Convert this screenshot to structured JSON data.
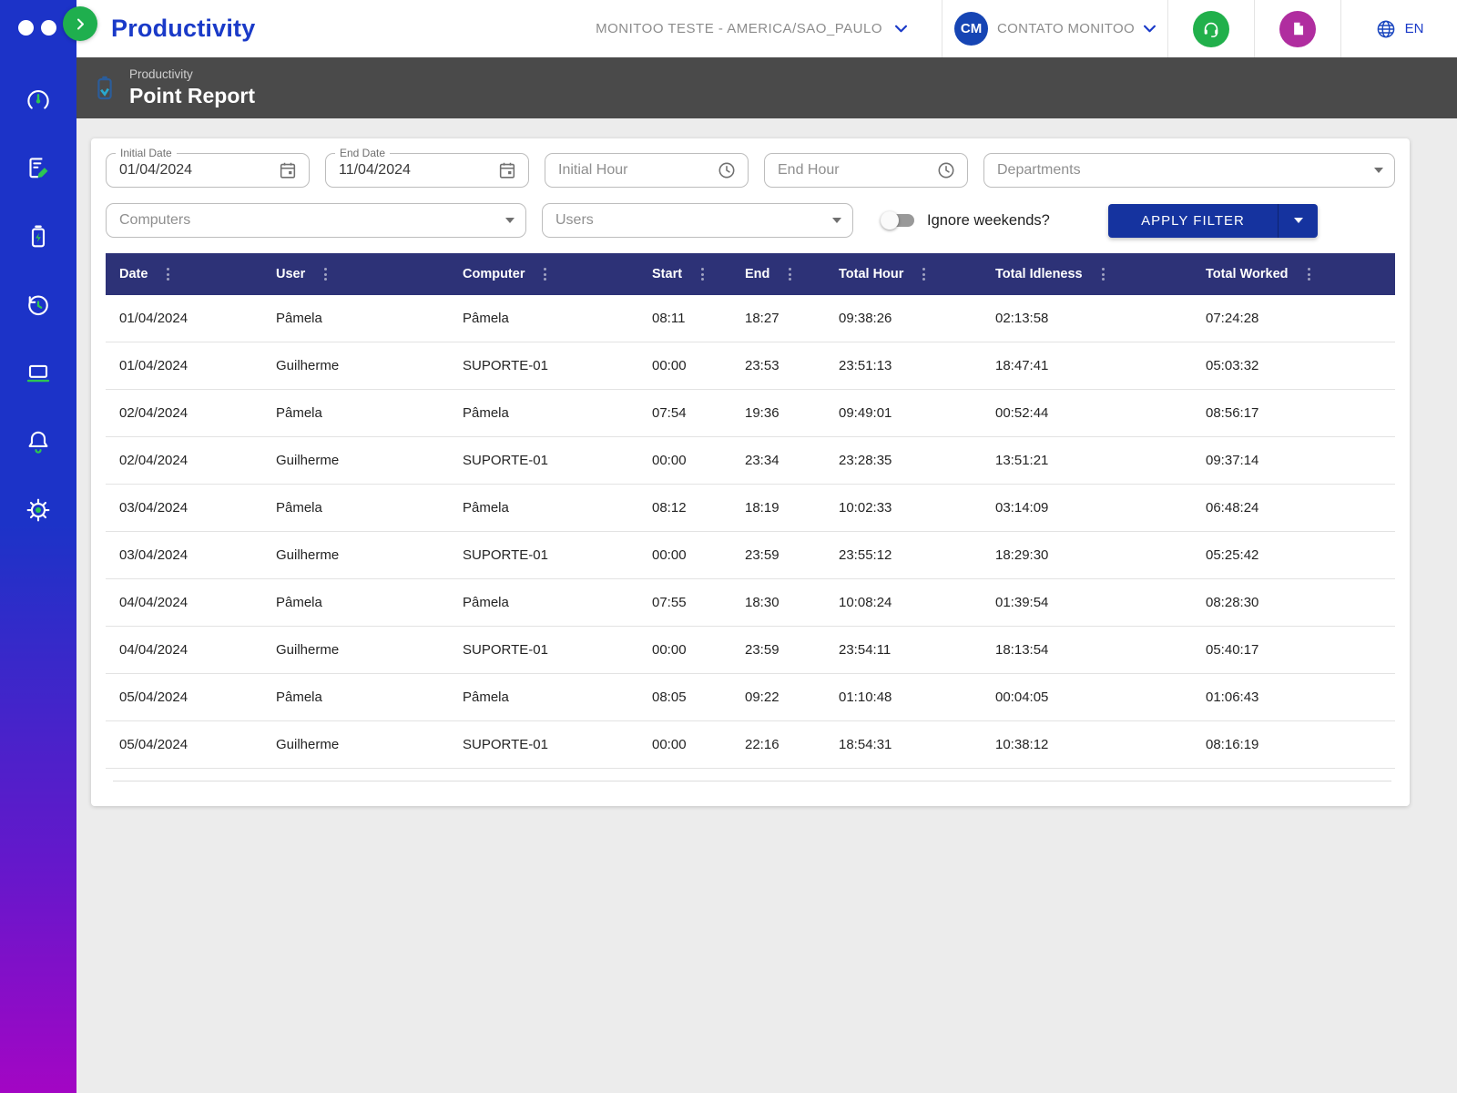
{
  "brand": {
    "app_name": "Productivity"
  },
  "topbar": {
    "tenant_label": "MONITOO TESTE - AMERICA/SAO_PAULO",
    "user_initials": "CM",
    "user_name": "CONTATO MONITOO",
    "language": "EN"
  },
  "page_header": {
    "breadcrumb": "Productivity",
    "title": "Point Report"
  },
  "filters": {
    "initial_date": {
      "label": "Initial Date",
      "value": "01/04/2024"
    },
    "end_date": {
      "label": "End Date",
      "value": "11/04/2024"
    },
    "initial_hour": {
      "placeholder": "Initial Hour"
    },
    "end_hour": {
      "placeholder": "End Hour"
    },
    "departments": {
      "placeholder": "Departments"
    },
    "computers": {
      "placeholder": "Computers"
    },
    "users": {
      "placeholder": "Users"
    },
    "ignore_weekends": {
      "label": "Ignore weekends?",
      "enabled": false
    },
    "apply_button_label": "APPLY FILTER"
  },
  "table": {
    "columns": [
      "Date",
      "User",
      "Computer",
      "Start",
      "End",
      "Total Hour",
      "Total Idleness",
      "Total Worked"
    ],
    "rows": [
      [
        "01/04/2024",
        "Pâmela",
        "Pâmela",
        "08:11",
        "18:27",
        "09:38:26",
        "02:13:58",
        "07:24:28"
      ],
      [
        "01/04/2024",
        "Guilherme",
        "SUPORTE-01",
        "00:00",
        "23:53",
        "23:51:13",
        "18:47:41",
        "05:03:32"
      ],
      [
        "02/04/2024",
        "Pâmela",
        "Pâmela",
        "07:54",
        "19:36",
        "09:49:01",
        "00:52:44",
        "08:56:17"
      ],
      [
        "02/04/2024",
        "Guilherme",
        "SUPORTE-01",
        "00:00",
        "23:34",
        "23:28:35",
        "13:51:21",
        "09:37:14"
      ],
      [
        "03/04/2024",
        "Pâmela",
        "Pâmela",
        "08:12",
        "18:19",
        "10:02:33",
        "03:14:09",
        "06:48:24"
      ],
      [
        "03/04/2024",
        "Guilherme",
        "SUPORTE-01",
        "00:00",
        "23:59",
        "23:55:12",
        "18:29:30",
        "05:25:42"
      ],
      [
        "04/04/2024",
        "Pâmela",
        "Pâmela",
        "07:55",
        "18:30",
        "10:08:24",
        "01:39:54",
        "08:28:30"
      ],
      [
        "04/04/2024",
        "Guilherme",
        "SUPORTE-01",
        "00:00",
        "23:59",
        "23:54:11",
        "18:13:54",
        "05:40:17"
      ],
      [
        "05/04/2024",
        "Pâmela",
        "Pâmela",
        "08:05",
        "09:22",
        "01:10:48",
        "00:04:05",
        "01:06:43"
      ],
      [
        "05/04/2024",
        "Guilherme",
        "SUPORTE-01",
        "00:00",
        "22:16",
        "18:54:31",
        "10:38:12",
        "08:16:19"
      ]
    ]
  },
  "sidebar_icons": [
    "gauge",
    "report-edit",
    "battery-energy",
    "history",
    "computer",
    "notifications",
    "settings"
  ],
  "colors": {
    "accent_blue": "#1a3ac8",
    "sidebar_top": "#1c33c8",
    "sidebar_bottom": "#a306c4",
    "green": "#21b04b",
    "magenta": "#b02d9f",
    "band_gray": "#4a4a4a",
    "table_header": "#2d3277",
    "button_blue": "#15339f"
  }
}
